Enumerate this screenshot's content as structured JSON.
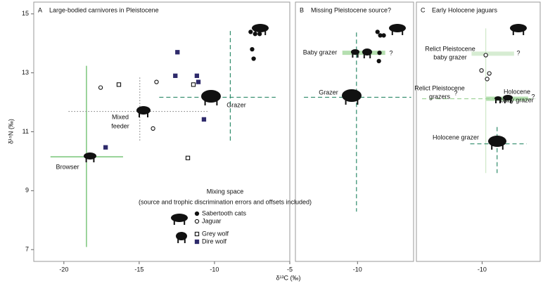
{
  "chart_data": [
    {
      "type": "scatter",
      "panel": "A",
      "title": "Large-bodied carnivores in Pleistocene",
      "xlabel": "δ¹³C (‰)",
      "ylabel": "δ¹⁵N (‰)",
      "xlim": [
        -22,
        -5
      ],
      "ylim": [
        6.6,
        15.4
      ],
      "xticks": [
        -20,
        -15,
        -10,
        -5
      ],
      "yticks": [
        7,
        9,
        11,
        13,
        15
      ],
      "legend_title": "Mixing space",
      "legend_subtitle": "(source and trophic discrimination errors and offsets included)",
      "series": [
        {
          "name": "Sabertooth cats",
          "color": "#111111",
          "marker": "circle",
          "x": [
            -7.6,
            -7.3,
            -7.0,
            -7.5,
            -7.4
          ],
          "values": [
            14.39,
            14.32,
            14.32,
            13.8,
            13.48
          ]
        },
        {
          "name": "Jaguar",
          "color": "#111111",
          "marker": "circle-open",
          "x": [
            -17.56,
            -13.85,
            -14.08
          ],
          "values": [
            12.5,
            12.69,
            11.11
          ]
        },
        {
          "name": "Grey wolf",
          "color": "#111111",
          "marker": "square-open",
          "x": [
            -16.35,
            -11.4,
            -11.77
          ],
          "values": [
            12.6,
            12.6,
            10.11
          ]
        },
        {
          "name": "Dire wolf",
          "color": "#2e2a6b",
          "marker": "square",
          "x": [
            -12.46,
            -12.6,
            -11.17,
            -11.07,
            -10.7,
            -17.23
          ],
          "values": [
            13.7,
            12.9,
            12.9,
            12.69,
            11.42,
            10.47
          ]
        }
      ],
      "lines": [
        {
          "x": [
            -18.5,
            -18.5
          ],
          "y": [
            13.24,
            7.09
          ],
          "color": "#5cb85c",
          "style": "solid"
        },
        {
          "x": [
            -20.89,
            -16.07
          ],
          "y": [
            10.15,
            10.15
          ],
          "color": "#5cb85c",
          "style": "solid"
        },
        {
          "x": [
            -8.95,
            -8.95
          ],
          "y": [
            14.42,
            10.68
          ],
          "color": "#2e8b6a",
          "style": "dashed"
        },
        {
          "x": [
            -13.67,
            -5.94
          ],
          "y": [
            12.17,
            12.17
          ],
          "color": "#2e8b6a",
          "style": "dashed"
        },
        {
          "x": [
            -14.96,
            -14.96
          ],
          "y": [
            12.84,
            10.68
          ],
          "color": "#888888",
          "style": "dotted"
        },
        {
          "x": [
            -19.69,
            -10.43
          ],
          "y": [
            11.69,
            11.69
          ],
          "color": "#888888",
          "style": "dotted"
        }
      ],
      "bands": [],
      "annotations": [
        "Browser",
        "Mixed",
        "feeder",
        "Grazer"
      ]
    },
    {
      "type": "scatter",
      "panel": "B",
      "title": "Missing Pleistocene source?",
      "xlim": [
        -14.1,
        -6.3
      ],
      "ylim": [
        6.6,
        15.4
      ],
      "xticks": [
        -10
      ],
      "yticks": [],
      "series": [
        {
          "color": "#111111",
          "marker": "circle",
          "x": [
            -8.68,
            -8.5,
            -8.27,
            -8.55,
            -8.59
          ],
          "values": [
            14.39,
            14.27,
            14.27,
            13.68,
            13.4
          ]
        }
      ],
      "lines": [
        {
          "x": [
            -10.07,
            -10.07
          ],
          "y": [
            14.37,
            8.29
          ],
          "color": "#2e8b6a",
          "style": "dashed"
        },
        {
          "x": [
            -13.54,
            -6.46
          ],
          "y": [
            12.17,
            12.17
          ],
          "color": "#2e8b6a",
          "style": "dashed"
        }
      ],
      "bands": [
        {
          "x": [
            -11.0,
            -8.17
          ],
          "y": 13.68,
          "color": "#b5dfb0"
        }
      ],
      "annotations": [
        "Baby grazer",
        "?",
        "Grazer"
      ]
    },
    {
      "type": "scatter",
      "panel": "C",
      "title": "Early Holocene jaguars",
      "xlim": [
        -14.3,
        -6.2
      ],
      "ylim": [
        6.6,
        15.4
      ],
      "xticks": [
        -10
      ],
      "yticks": [],
      "series": [
        {
          "color": "#111111",
          "marker": "circle-open",
          "x": [
            -9.76,
            -10.04,
            -9.53,
            -9.67
          ],
          "values": [
            13.6,
            13.08,
            12.98,
            12.79
          ]
        }
      ],
      "lines": [
        {
          "x": [
            -9.76,
            -9.76
          ],
          "y": [
            14.51,
            9.6
          ],
          "color": "#cfe8c8",
          "style": "solid"
        },
        {
          "x": [
            -13.93,
            -6.53
          ],
          "y": [
            12.12,
            12.12
          ],
          "color": "#9fd39a",
          "style": "dashed"
        },
        {
          "x": [
            -10.78,
            -7.08
          ],
          "y": [
            10.59,
            10.59
          ],
          "color": "#2e8b6a",
          "style": "dashed"
        },
        {
          "x": [
            -9.02,
            -9.02
          ],
          "y": [
            11.16,
            9.6
          ],
          "color": "#2e8b6a",
          "style": "dashed"
        }
      ],
      "bands": [
        {
          "x": [
            -10.69,
            -7.91
          ],
          "y": 13.65,
          "color": "#d6ecd2"
        },
        {
          "x": [
            -9.76,
            -6.99
          ],
          "y": 12.12,
          "color": "#b5dfb0"
        }
      ],
      "annotations": [
        "Relict Pleistocene",
        "baby grazer",
        "?",
        "Relict Pleistocene",
        "grazers",
        "?",
        "Holocene",
        "baby grazer",
        "?",
        "Holocene grazer"
      ]
    }
  ]
}
